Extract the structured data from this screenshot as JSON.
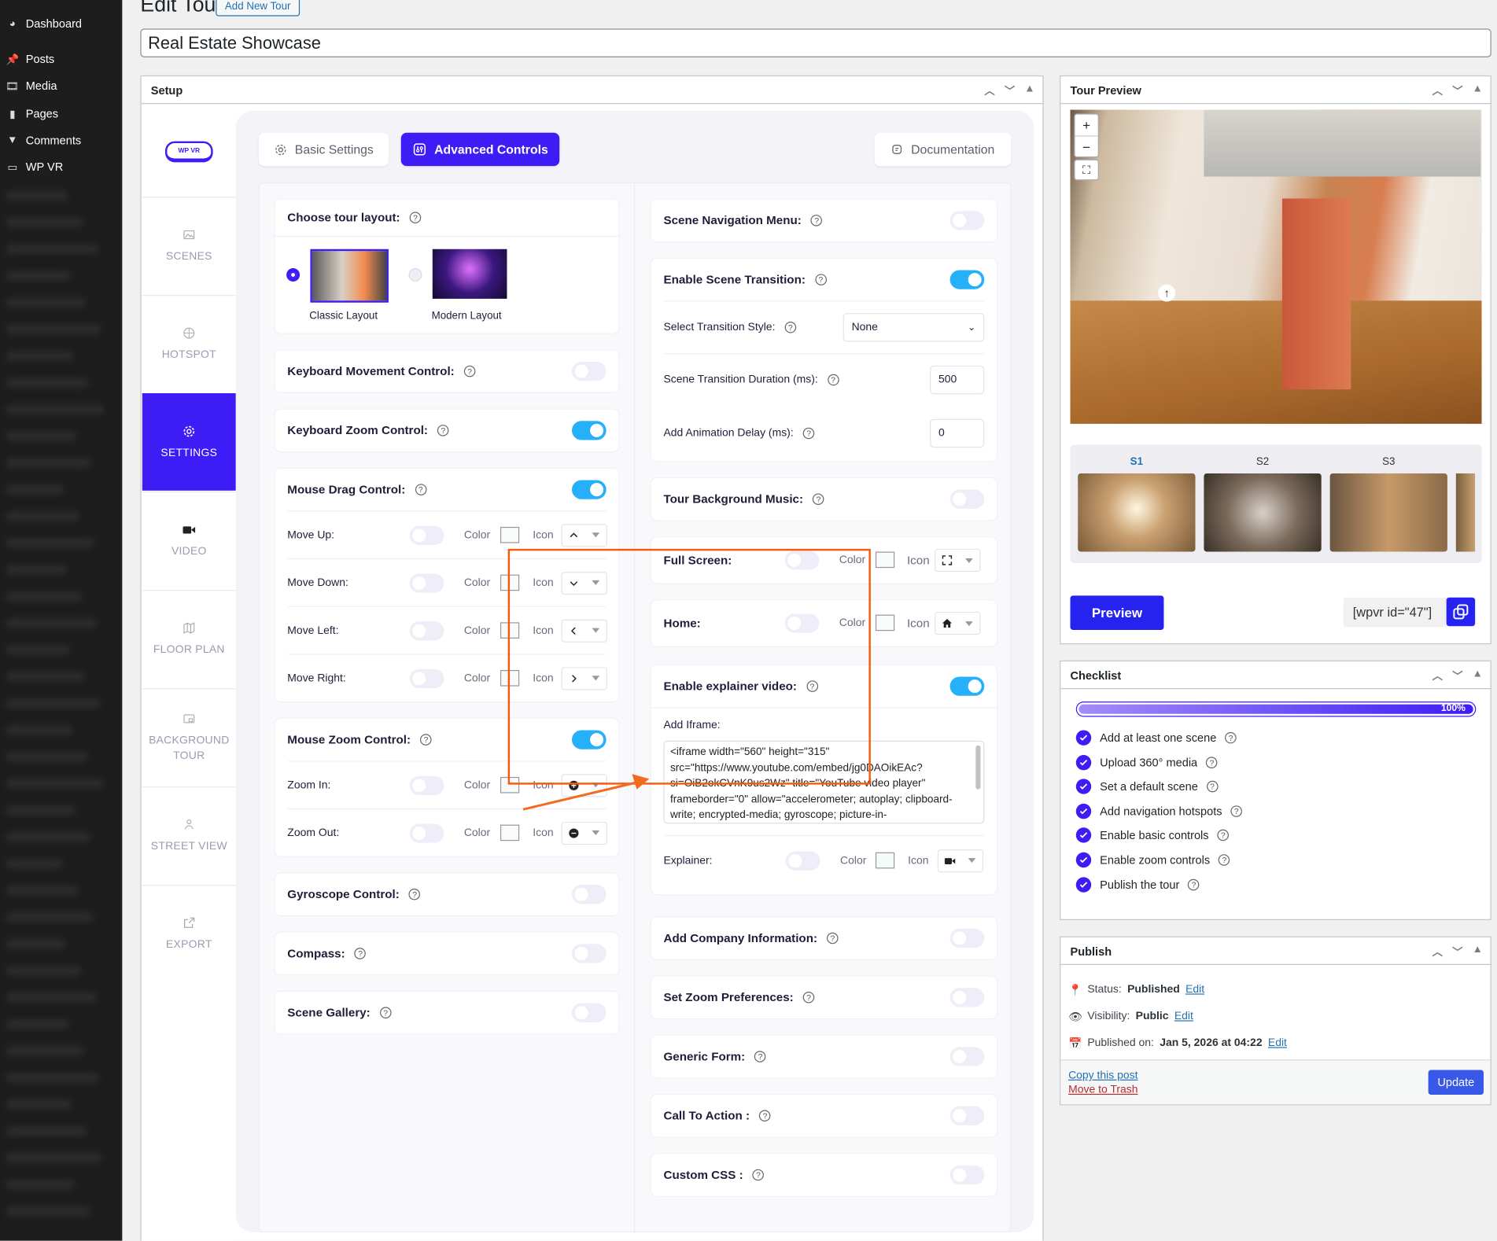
{
  "admin_menu": [
    {
      "label": "Dashboard",
      "icon": "dashboard-icon"
    },
    {
      "label": "Posts",
      "icon": "pin-icon"
    },
    {
      "label": "Media",
      "icon": "media-icon"
    },
    {
      "label": "Pages",
      "icon": "pages-icon"
    },
    {
      "label": "Comments",
      "icon": "comment-icon"
    },
    {
      "label": "WP VR",
      "icon": "vr-icon"
    }
  ],
  "page": {
    "title": "Edit Tour",
    "add_new": "Add New Tour",
    "tour_title": "Real Estate Showcase"
  },
  "setup": {
    "title": "Setup",
    "logo_text": "WP VR",
    "nav": [
      {
        "label": "SCENES",
        "icon": "image-icon"
      },
      {
        "label": "HOTSPOT",
        "icon": "crosshair-icon"
      },
      {
        "label": "SETTINGS",
        "icon": "gear-icon",
        "active": true
      },
      {
        "label": "VIDEO",
        "icon": "video-icon"
      },
      {
        "label": "FLOOR PLAN",
        "icon": "map-icon"
      },
      {
        "label": "BACKGROUND TOUR",
        "icon": "background-icon"
      },
      {
        "label": "STREET VIEW",
        "icon": "person-icon"
      },
      {
        "label": "EXPORT",
        "icon": "export-icon"
      }
    ],
    "tabs": {
      "basic": "Basic Settings",
      "advanced": "Advanced Controls",
      "documentation": "Documentation",
      "active": "advanced"
    }
  },
  "left_cards": [
    {
      "type": "layout",
      "label": "Choose tour layout:",
      "options": [
        {
          "label": "Classic Layout",
          "selected": true
        },
        {
          "label": "Modern Layout",
          "selected": false
        }
      ]
    },
    {
      "type": "simple",
      "label": "Keyboard Movement Control:",
      "on": false
    },
    {
      "type": "simple",
      "label": "Keyboard Zoom Control:",
      "on": true
    },
    {
      "type": "simple",
      "label": "Mouse Drag Control:",
      "on": true,
      "rows": [
        {
          "label": "Move Up:",
          "on": false,
          "color_label": "Color",
          "icon_label": "Icon",
          "icon": "chevron-up-icon",
          "color": "#f8fbfa"
        },
        {
          "label": "Move Down:",
          "on": false,
          "color_label": "Color",
          "icon_label": "Icon",
          "icon": "chevron-down-icon",
          "color": "#f8fbfa"
        },
        {
          "label": "Move Left:",
          "on": false,
          "color_label": "Color",
          "icon_label": "Icon",
          "icon": "chevron-left-icon",
          "color": "#f8fbfa"
        },
        {
          "label": "Move Right:",
          "on": false,
          "color_label": "Color",
          "icon_label": "Icon",
          "icon": "chevron-right-icon",
          "color": "#f8fbfa"
        }
      ]
    },
    {
      "type": "simple",
      "label": "Mouse Zoom Control:",
      "on": true,
      "rows": [
        {
          "label": "Zoom In:",
          "on": false,
          "color_label": "Color",
          "icon_label": "Icon",
          "icon": "plus-circle-icon",
          "color": "#f8fbfa"
        },
        {
          "label": "Zoom Out:",
          "on": false,
          "color_label": "Color",
          "icon_label": "Icon",
          "icon": "minus-circle-icon",
          "color": "#f8fbfa"
        }
      ]
    },
    {
      "type": "simple",
      "label": "Gyroscope Control:",
      "on": false
    },
    {
      "type": "simple",
      "label": "Compass:",
      "on": false
    },
    {
      "type": "simple",
      "label": "Scene Gallery:",
      "on": false
    }
  ],
  "right_cards": [
    {
      "type": "simple",
      "label": "Scene Navigation Menu:",
      "on": false
    },
    {
      "type": "transition",
      "label": "Enable Scene Transition:",
      "on": true,
      "style_label": "Select Transition Style:",
      "style_value": "None",
      "duration_label": "Scene Transition Duration (ms):",
      "duration_value": "500",
      "delay_label": "Add Animation Delay (ms):",
      "delay_value": "0"
    },
    {
      "type": "simple",
      "label": "Tour Background Music:",
      "on": false
    },
    {
      "type": "inline",
      "label": "Full Screen:",
      "on": false,
      "color_label": "Color",
      "icon_label": "Icon",
      "icon": "fullscreen-icon",
      "color": "#f8fbfa"
    },
    {
      "type": "inline",
      "label": "Home:",
      "on": false,
      "color_label": "Color",
      "icon_label": "Icon",
      "icon": "home-icon",
      "color": "#f8fbfa"
    },
    {
      "type": "explainer",
      "label": "Enable explainer video:",
      "on": true,
      "iframe_label": "Add Iframe:",
      "iframe_value": "<iframe width=\"560\" height=\"315\" src=\"https://www.youtube.com/embed/jg0DAOikEAc?si=OiB2okCVnK9us2Wz\" title=\"YouTube video player\" frameborder=\"0\" allow=\"accelerometer; autoplay; clipboard-write; encrypted-media; gyroscope; picture-in-",
      "explainer_label": "Explainer:",
      "explainer_on": false,
      "color_label": "Color",
      "icon_label": "Icon",
      "icon": "video-icon",
      "color": "#f5fbf8"
    },
    {
      "type": "simple",
      "label": "Add Company Information:",
      "on": false
    },
    {
      "type": "simple",
      "label": "Set Zoom Preferences:",
      "on": false
    },
    {
      "type": "simple",
      "label": "Generic Form:",
      "on": false
    },
    {
      "type": "simple",
      "label": "Call To Action :",
      "on": false
    },
    {
      "type": "simple",
      "label": "Custom CSS :",
      "on": false
    }
  ],
  "annotation": {
    "highlight_color": "#f65a0c"
  },
  "preview": {
    "title": "Tour Preview",
    "scenes": [
      {
        "label": "S1",
        "active": true
      },
      {
        "label": "S2"
      },
      {
        "label": "S3"
      }
    ],
    "button": "Preview",
    "shortcode": "[wpvr id=\"47\"]",
    "zoom_in": "+",
    "zoom_out": "−"
  },
  "checklist": {
    "title": "Checklist",
    "progress_percent": 100,
    "progress_label": "100%",
    "items": [
      "Add at least one scene",
      "Upload 360° media",
      "Set a default scene",
      "Add navigation hotspots",
      "Enable basic controls",
      "Enable zoom controls",
      "Publish the tour"
    ]
  },
  "publish": {
    "title": "Publish",
    "status_label": "Status:",
    "status_value": "Published",
    "visibility_label": "Visibility:",
    "visibility_value": "Public",
    "published_label": "Published on:",
    "published_value": "Jan 5, 2026 at 04:22",
    "edit": "Edit",
    "copy": "Copy this post",
    "trash": "Move to Trash",
    "update": "Update"
  },
  "colors": {
    "accent": "#3d1cf6",
    "toggle_on": "#27b0fa",
    "wp_blue": "#2271b1",
    "update_button": "#3858e9"
  }
}
